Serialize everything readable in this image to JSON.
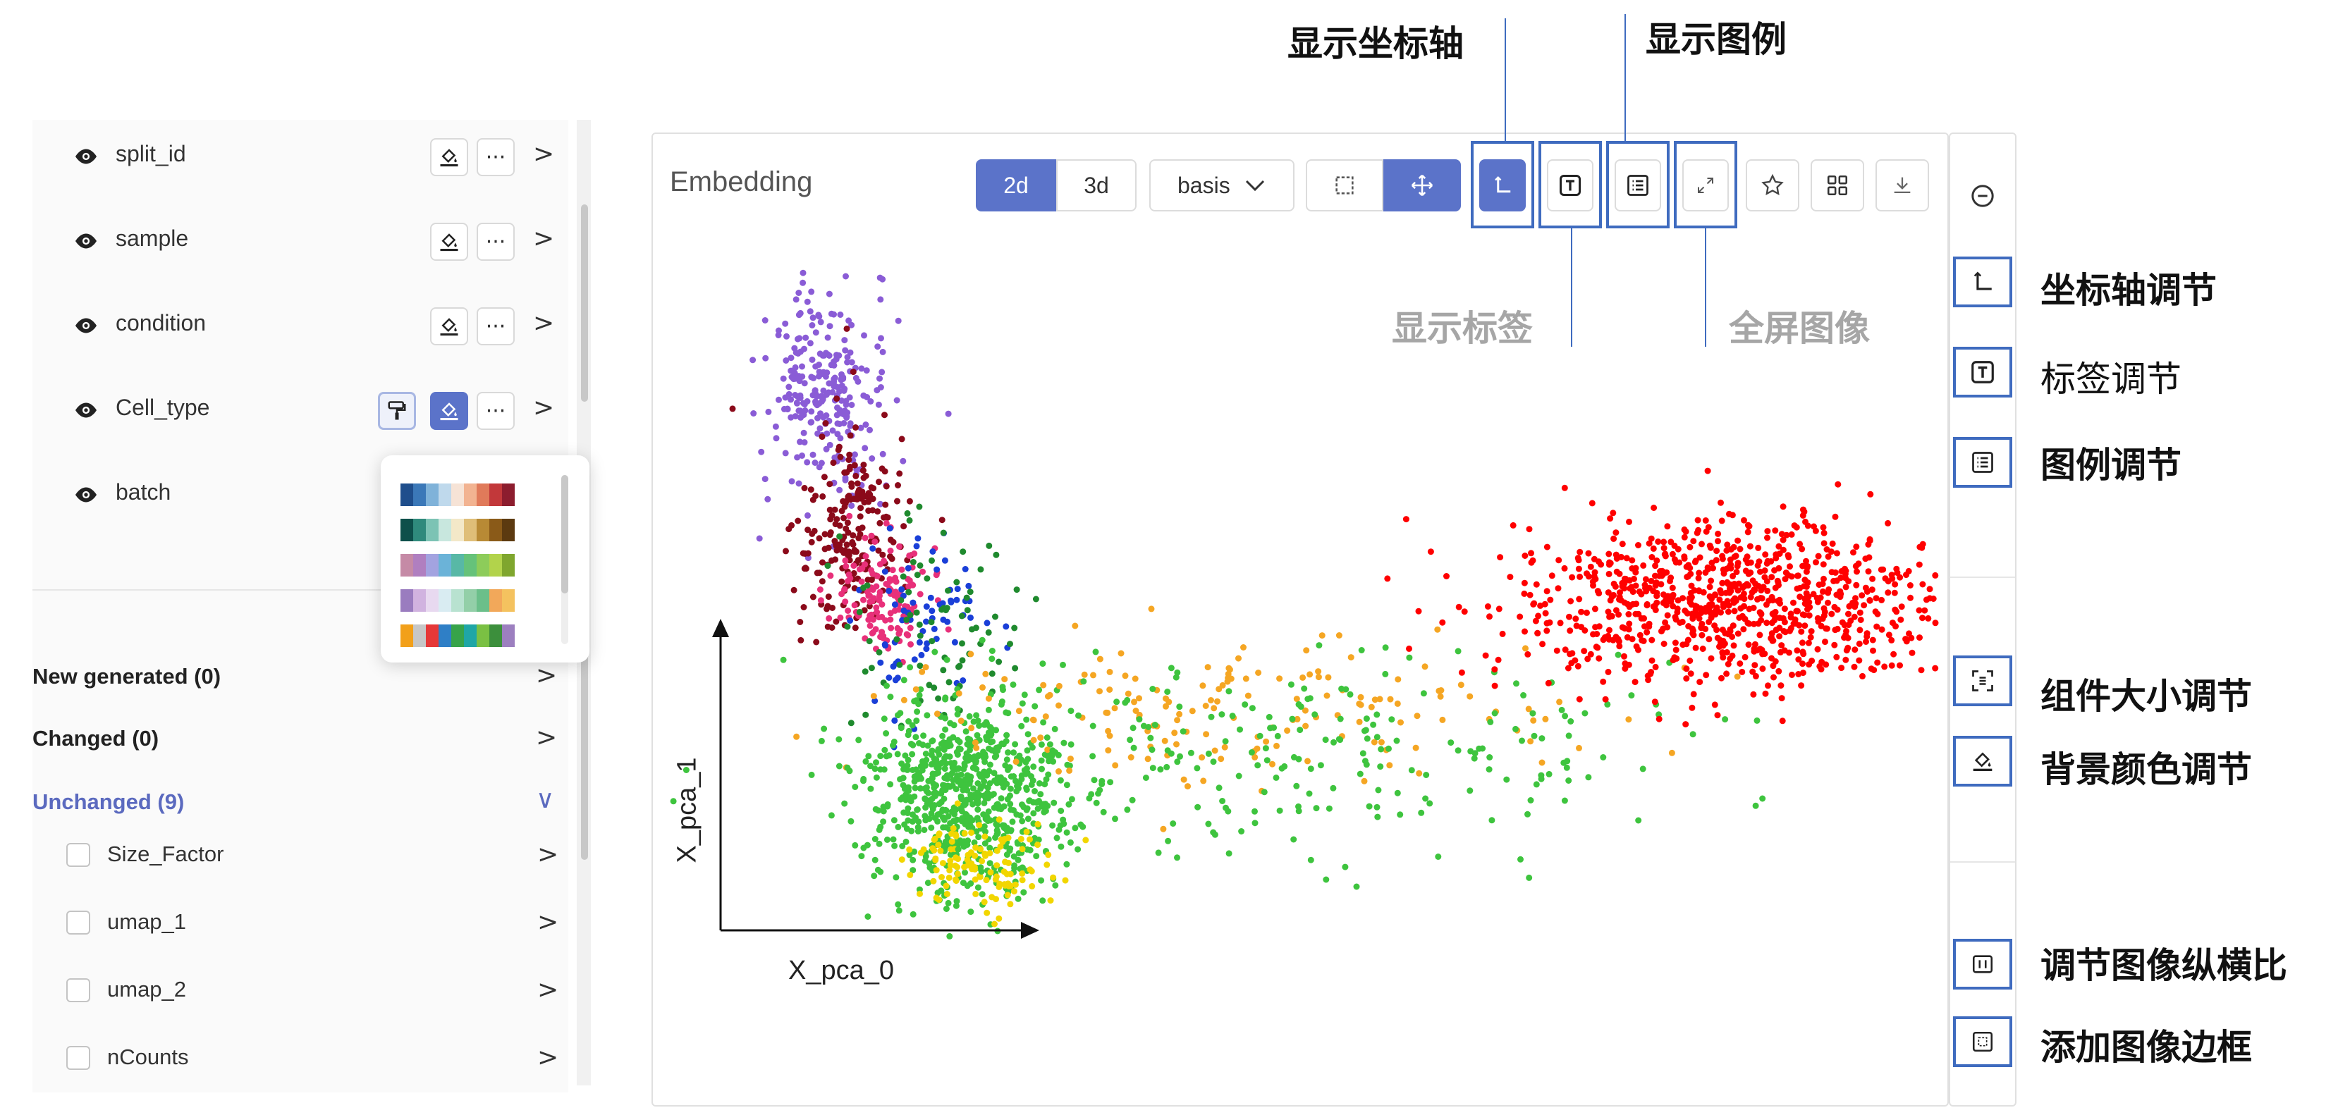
{
  "attributes": [
    {
      "label": "split_id"
    },
    {
      "label": "sample"
    },
    {
      "label": "condition"
    },
    {
      "label": "Cell_type"
    },
    {
      "label": "batch"
    }
  ],
  "more_glyph": "···",
  "chevron_right": ">",
  "chevron_down": "∨",
  "sections": {
    "new_generated": "New generated (0)",
    "changed": "Changed (0)",
    "unchanged": "Unchanged (9)"
  },
  "unchanged_items": [
    "Size_Factor",
    "umap_1",
    "umap_2",
    "nCounts"
  ],
  "palettes": [
    [
      "#1f4e8c",
      "#3b78b8",
      "#7fb2d9",
      "#bfd9ec",
      "#f6e3d6",
      "#f2b391",
      "#e07a5a",
      "#c2383a",
      "#8c1d2e"
    ],
    [
      "#0d4f4a",
      "#2f8a7c",
      "#7cc3b4",
      "#c8e7de",
      "#f3e8c8",
      "#dfbe78",
      "#b88a35",
      "#8a5a18",
      "#5c3a10"
    ],
    [
      "#c58aa6",
      "#b07fc0",
      "#a3a3e0",
      "#6bb3d8",
      "#58b8a6",
      "#66c27a",
      "#8dcc5a",
      "#b2d34b",
      "#7fa62e"
    ],
    [
      "#9a7cbf",
      "#d1b3e0",
      "#e8d9f0",
      "#d9ecf2",
      "#b8e2d0",
      "#93cfa8",
      "#6bbf8a",
      "#f2a85a",
      "#f4c25f"
    ],
    [
      "#f2a01a",
      "#c7c7c7",
      "#e63838",
      "#2f7fc6",
      "#37a34a",
      "#1fa6a6",
      "#7ac043",
      "#3c8f3c",
      "#9c7fbf"
    ]
  ],
  "embedding": {
    "title": "Embedding",
    "mode_2d": "2d",
    "mode_3d": "3d",
    "basis_label": "basis",
    "x_axis_label": "X_pca_0",
    "y_axis_label": "X_pca_1"
  },
  "annotations": {
    "show_axis": "显示坐标轴",
    "show_legend": "显示图例",
    "show_label": "显示标签",
    "fullscreen": "全屏图像",
    "axis_adjust": "坐标轴调节",
    "label_adjust": "标签调节",
    "legend_adjust": "图例调节",
    "size_adjust": "组件大小调节",
    "bg_color_adjust": "背景颜色调节",
    "aspect_adjust": "调节图像纵横比",
    "add_border": "添加图像边框"
  },
  "colors": {
    "accent": "#5b73c9",
    "highlight": "#3f6bbf",
    "clusters": [
      "#8a5cd6",
      "#8b0a1a",
      "#e8307a",
      "#1a3fd8",
      "#1f8a2e",
      "#3ec43e",
      "#f5a623",
      "#f2d600",
      "#ff0000"
    ]
  },
  "icons": [
    "eye-icon",
    "paint-bucket-icon",
    "more-icon",
    "roller-brush-icon",
    "lasso-select-icon",
    "move-icon",
    "axis-icon",
    "text-label-icon",
    "legend-icon",
    "expand-icon",
    "star-icon",
    "grid-icon",
    "download-icon",
    "zoom-out-icon",
    "resize-icon"
  ]
}
